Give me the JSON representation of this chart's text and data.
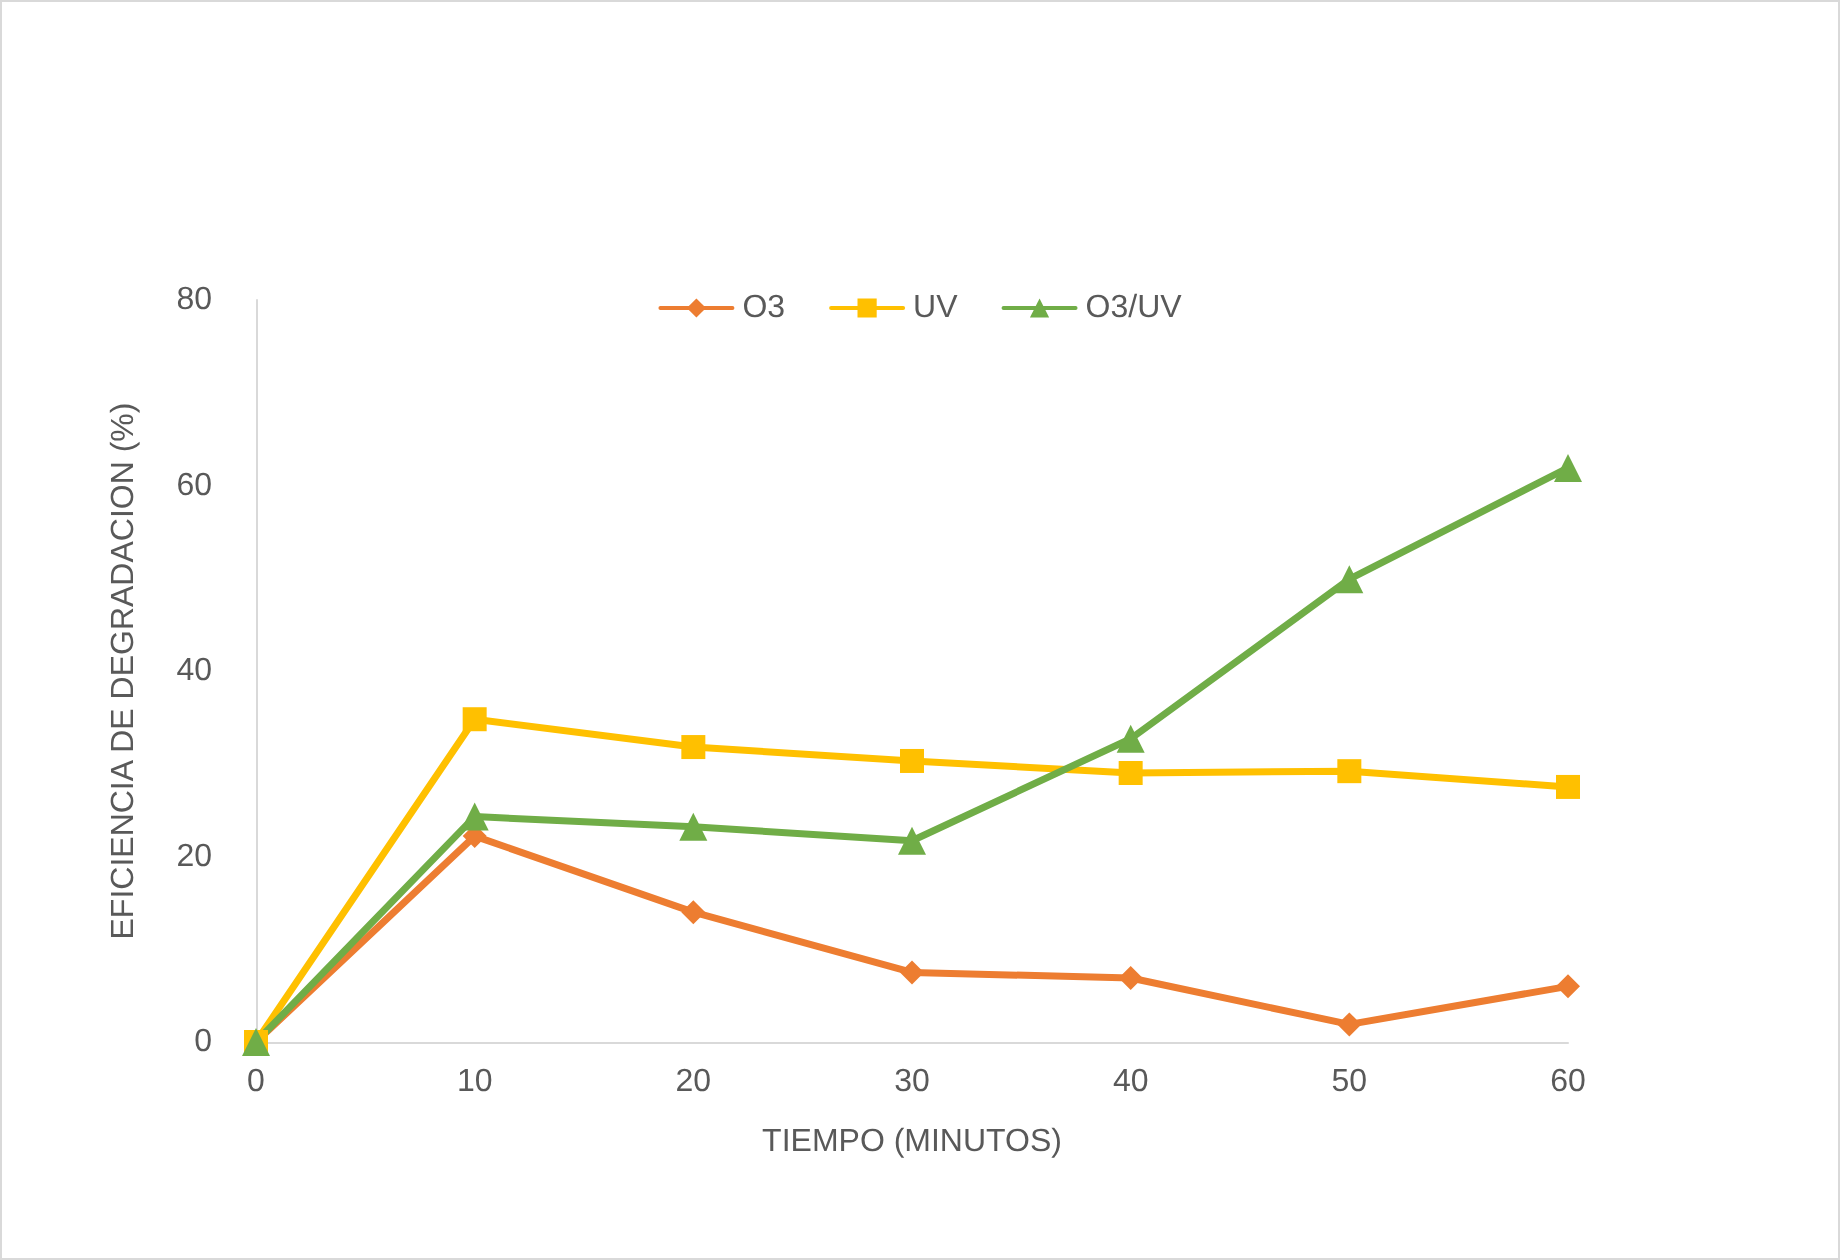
{
  "chart_data": {
    "type": "line",
    "xlabel": "TIEMPO (MINUTOS)",
    "ylabel": "EFICIENCIA DE DEGRADACION (%)",
    "x": [
      0,
      10,
      20,
      30,
      40,
      50,
      60
    ],
    "series": [
      {
        "name": "O3",
        "color": "#ed7d31",
        "marker": "diamond",
        "values": [
          0,
          22.2,
          14.0,
          7.5,
          6.9,
          1.9,
          6.0
        ]
      },
      {
        "name": "UV",
        "color": "#ffc000",
        "marker": "square",
        "values": [
          0,
          34.8,
          31.8,
          30.3,
          29.0,
          29.2,
          27.5
        ]
      },
      {
        "name": "O3/UV",
        "color": "#70ad47",
        "marker": "triangle",
        "values": [
          0,
          24.3,
          23.2,
          21.7,
          32.7,
          49.9,
          61.9
        ]
      }
    ],
    "xlim": [
      0,
      60
    ],
    "xticks": [
      0,
      10,
      20,
      30,
      40,
      50,
      60
    ],
    "ylim": [
      0,
      80
    ],
    "yticks": [
      0,
      20,
      40,
      60,
      80
    ],
    "grid": false,
    "legend": "top",
    "line_style": "solid"
  }
}
